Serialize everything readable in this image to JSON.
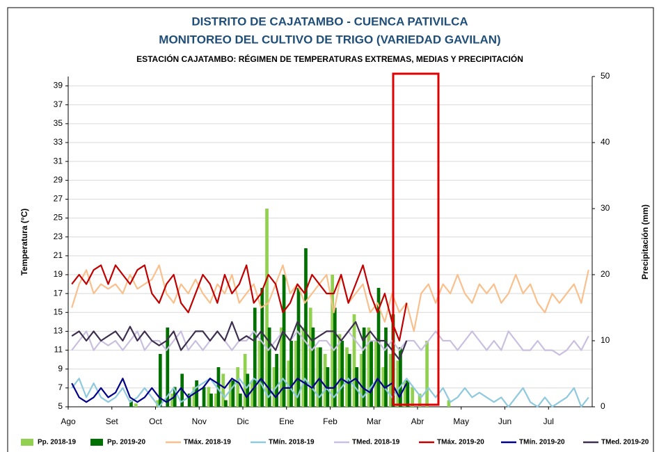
{
  "chart_data": {
    "type": "line",
    "title": "DISTRITO DE CAJATAMBO  - CUENCA PATIVILCA",
    "subtitle": "MONITOREO DEL CULTIVO DE TRIGO  (VARIEDAD GAVILAN)",
    "subtitle2": "ESTACIÓN CAJATAMBO:  RÉGIMEN DE TEMPERATURAS EXTREMAS, MEDIAS Y PRECIPITACIÓN",
    "y_label": "Temperatura (°C)",
    "y2_label": "Precipitación (mm)",
    "ylim": [
      5,
      40
    ],
    "yticks": [
      5,
      7,
      9,
      11,
      13,
      15,
      17,
      19,
      21,
      23,
      25,
      27,
      29,
      31,
      33,
      35,
      37,
      39
    ],
    "y2lim": [
      0,
      50
    ],
    "y2ticks": [
      0,
      10,
      20,
      30,
      40,
      50
    ],
    "grid": true,
    "legend": "bottom",
    "categories": [
      "Ago",
      null,
      null,
      null,
      null,
      null,
      "Set",
      null,
      null,
      null,
      null,
      null,
      "Oct",
      null,
      null,
      null,
      null,
      null,
      "Nov",
      null,
      null,
      null,
      null,
      null,
      "Dic",
      null,
      null,
      null,
      null,
      null,
      "Ene",
      null,
      null,
      null,
      null,
      null,
      "Feb",
      null,
      null,
      null,
      null,
      null,
      "Mar",
      null,
      null,
      null,
      null,
      null,
      "Abr",
      null,
      null,
      null,
      null,
      null,
      "May",
      null,
      null,
      null,
      null,
      null,
      "Jun",
      null,
      null,
      null,
      null,
      null,
      "Jul",
      null,
      null,
      null,
      null,
      null
    ],
    "series": [
      {
        "name": "Pp. 2018-19",
        "type": "bar",
        "axis": "y2",
        "color": "#92d050",
        "values": [
          0,
          0,
          0,
          0,
          0,
          0,
          0,
          0,
          0,
          0.5,
          0,
          0,
          1,
          0,
          2,
          0,
          0,
          3,
          0,
          3,
          2,
          5,
          4,
          6,
          8,
          4,
          10,
          30,
          6,
          12,
          7,
          10,
          12,
          15,
          9,
          8,
          20,
          11,
          9,
          14,
          8,
          12,
          10,
          6,
          8,
          7,
          4,
          3,
          2,
          10,
          0,
          0,
          1,
          0,
          0,
          0,
          0,
          0,
          0,
          0,
          0,
          0,
          0,
          0,
          0,
          0,
          0,
          0,
          0,
          0,
          0,
          0
        ]
      },
      {
        "name": "Pp. 2019-20",
        "type": "bar",
        "axis": "y2",
        "color": "#007000",
        "values": [
          0,
          0,
          0,
          0,
          0,
          0,
          0,
          0,
          1,
          0,
          0,
          0,
          8,
          12,
          3,
          5,
          2,
          4,
          3,
          2,
          6,
          1,
          4,
          2,
          5,
          15,
          18,
          12,
          8,
          20,
          10,
          18,
          24,
          12,
          9,
          6,
          15,
          10,
          8,
          6,
          12,
          10,
          18,
          12,
          14,
          9,
          4,
          null,
          null,
          null,
          null,
          null,
          null,
          null,
          null,
          null,
          null,
          null,
          null,
          null,
          null,
          null,
          null,
          null,
          null,
          null,
          null,
          null,
          null,
          null,
          null,
          null
        ]
      },
      {
        "name": "TMáx. 2018-19",
        "type": "line",
        "color": "#f9c08d",
        "values": [
          15.5,
          18,
          19.5,
          17,
          18,
          17.5,
          18,
          17,
          19,
          17.5,
          18,
          18.5,
          20,
          17,
          16,
          18,
          17,
          18.5,
          17,
          16,
          18,
          17,
          19,
          16,
          17,
          18,
          15.5,
          16,
          18,
          20,
          17,
          18,
          16,
          17,
          18,
          19,
          15,
          19,
          16,
          17,
          18,
          15,
          16,
          14,
          17,
          15,
          16,
          13,
          17,
          18,
          16,
          18,
          17,
          19,
          17,
          16,
          18,
          17,
          18,
          16,
          17,
          19,
          17,
          18,
          16,
          15,
          17,
          16,
          17,
          18,
          16,
          19.5
        ]
      },
      {
        "name": "TMín. 2018-19",
        "type": "line",
        "color": "#8fc9dd",
        "values": [
          7,
          8,
          6,
          7.5,
          6,
          5.5,
          6,
          7,
          5.5,
          6,
          7,
          6,
          5,
          6,
          7,
          5.5,
          6,
          7,
          7.5,
          8,
          7,
          6,
          7,
          8,
          7,
          8,
          7.5,
          6,
          7,
          8,
          7,
          6,
          8,
          7,
          6,
          7,
          6,
          7,
          8,
          7,
          6,
          7,
          8,
          7,
          6,
          7,
          8,
          7,
          6,
          7,
          6,
          7,
          5.5,
          6,
          7,
          6,
          6.5,
          6,
          5.5,
          6,
          5,
          6,
          7,
          5.5,
          5,
          6,
          5,
          5.5,
          6,
          7,
          5,
          6
        ]
      },
      {
        "name": "TMed. 2018-19",
        "type": "line",
        "color": "#c9bfe0",
        "values": [
          11,
          12,
          13,
          11,
          12,
          11.5,
          12,
          11,
          12,
          13,
          11,
          12,
          12,
          11,
          12,
          13,
          11,
          12,
          11,
          12,
          13,
          12,
          11,
          12,
          12,
          13,
          12,
          11,
          12,
          13,
          12,
          13,
          12,
          11,
          12,
          12,
          11,
          12,
          13,
          12,
          11,
          12,
          12,
          11,
          12,
          11,
          12,
          12,
          11,
          12,
          13,
          12,
          12,
          11,
          12,
          13,
          12,
          11,
          12,
          11,
          13,
          12,
          11,
          11,
          12,
          11,
          11,
          10.5,
          11,
          12,
          11,
          12.5
        ]
      },
      {
        "name": "TMáx. 2019-20",
        "type": "line",
        "color": "#c00000",
        "values": [
          18,
          19,
          18,
          19.5,
          20,
          18,
          20,
          19,
          18,
          19.5,
          20,
          17,
          16,
          18,
          19,
          16,
          15,
          17,
          19,
          18,
          16,
          19,
          17,
          18,
          20,
          16,
          17,
          19,
          18,
          15,
          16,
          18,
          17,
          19,
          18,
          17,
          17,
          19,
          16,
          18,
          20,
          17,
          15,
          17,
          14,
          12,
          16,
          null,
          null,
          null,
          null,
          null,
          null,
          null,
          null,
          null,
          null,
          null,
          null,
          null,
          null,
          null,
          null,
          null,
          null,
          null,
          null,
          null,
          null,
          null,
          null,
          null
        ]
      },
      {
        "name": "TMín. 2019-20",
        "type": "line",
        "color": "#00008b",
        "values": [
          7.5,
          6,
          5.5,
          6,
          7,
          6,
          6.5,
          8,
          6,
          5.5,
          6,
          7,
          6,
          5.5,
          6,
          7,
          6,
          6.5,
          7,
          8,
          7.5,
          7,
          8,
          7.5,
          6,
          7,
          8,
          7,
          6,
          7,
          7,
          8,
          7.5,
          7,
          8,
          7,
          7,
          8,
          7.5,
          8,
          7,
          6.5,
          8,
          7,
          7.5,
          6,
          7.5,
          null,
          null,
          null,
          null,
          null,
          null,
          null,
          null,
          null,
          null,
          null,
          null,
          null,
          null,
          null,
          null,
          null,
          null,
          null,
          null,
          null,
          null,
          null,
          null,
          null
        ]
      },
      {
        "name": "TMed. 2019-20",
        "type": "line",
        "color": "#3e2f4f",
        "values": [
          12.5,
          13,
          12,
          13,
          12,
          12.5,
          13,
          12,
          13.5,
          12,
          13,
          12,
          11.5,
          12,
          13,
          11,
          12,
          13,
          13,
          12,
          13,
          12,
          14,
          12,
          12.5,
          12,
          13,
          12,
          11,
          13,
          12,
          14,
          13,
          12,
          12.5,
          13,
          13,
          12,
          13,
          14,
          12,
          13,
          12,
          12,
          11,
          10,
          12,
          null,
          null,
          null,
          null,
          null,
          null,
          null,
          null,
          null,
          null,
          null,
          null,
          null,
          null,
          null,
          null,
          null,
          null,
          null,
          null,
          null,
          null,
          null,
          null,
          null
        ]
      }
    ]
  }
}
